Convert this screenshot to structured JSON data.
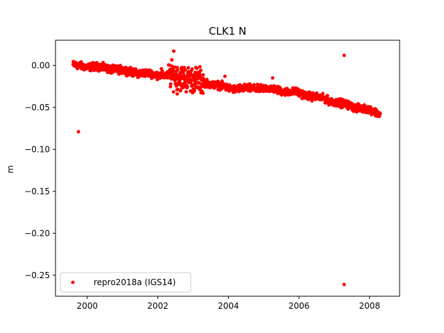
{
  "chart_data": {
    "type": "scatter",
    "title": "CLK1 N",
    "xlabel": "",
    "ylabel": "m",
    "xlim": [
      1999.1,
      2008.85
    ],
    "ylim": [
      -0.275,
      0.03
    ],
    "xticks": [
      2000,
      2002,
      2004,
      2006,
      2008
    ],
    "xtick_labels": [
      "2000",
      "2002",
      "2004",
      "2006",
      "2008"
    ],
    "yticks": [
      0.0,
      -0.05,
      -0.1,
      -0.15,
      -0.2,
      -0.25
    ],
    "ytick_labels": [
      "0.00",
      "−0.05",
      "−0.10",
      "−0.15",
      "−0.20",
      "−0.25"
    ],
    "grid": false,
    "legend_position": "lower-left",
    "colors": {
      "series": "#ff0000",
      "axes": "#000000",
      "background": "#ffffff"
    },
    "series": [
      {
        "name": "repro2018a (IGS14)",
        "marker": "circle",
        "trend": [
          [
            1999.6,
            0.0
          ],
          [
            2000.0,
            -0.001
          ],
          [
            2000.5,
            -0.003
          ],
          [
            2001.0,
            -0.006
          ],
          [
            2001.5,
            -0.009
          ],
          [
            2002.0,
            -0.011
          ],
          [
            2002.5,
            -0.013
          ],
          [
            2003.0,
            -0.017
          ],
          [
            2003.5,
            -0.022
          ],
          [
            2004.0,
            -0.027
          ],
          [
            2004.5,
            -0.028
          ],
          [
            2005.0,
            -0.027
          ],
          [
            2005.5,
            -0.03
          ],
          [
            2006.0,
            -0.033
          ],
          [
            2006.5,
            -0.038
          ],
          [
            2007.0,
            -0.043
          ],
          [
            2007.5,
            -0.049
          ],
          [
            2008.0,
            -0.053
          ],
          [
            2008.3,
            -0.058
          ]
        ],
        "outliers": [
          [
            2002.45,
            0.017
          ],
          [
            2007.28,
            0.012
          ],
          [
            2007.28,
            -0.261
          ],
          [
            1999.75,
            -0.079
          ],
          [
            2005.25,
            -0.015
          ],
          [
            2003.9,
            -0.013
          ],
          [
            2002.55,
            -0.034
          ],
          [
            2002.1,
            -0.004
          ]
        ]
      }
    ]
  }
}
